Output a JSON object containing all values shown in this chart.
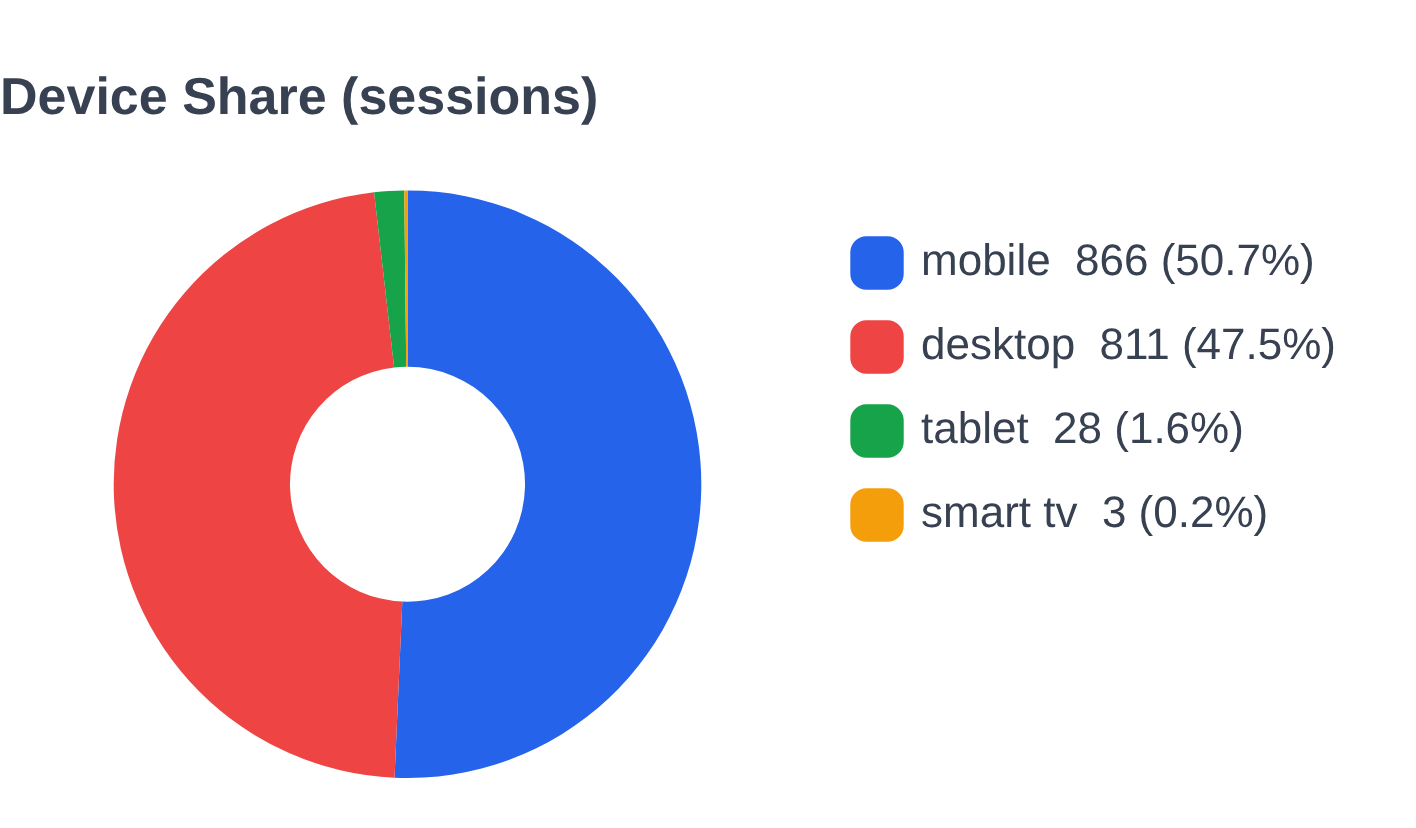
{
  "chart_data": {
    "type": "donut",
    "title": "Device Share (sessions)",
    "categories": [
      "mobile",
      "desktop",
      "tablet",
      "smart tv"
    ],
    "values": [
      866,
      811,
      28,
      3
    ],
    "value_labels": [
      "866 (50.7%)",
      "811 (47.5%)",
      "28 (1.6%)",
      "3 (0.2%)"
    ],
    "colors": [
      "#2563eb",
      "#ef4444",
      "#16a34a",
      "#f59e0b"
    ],
    "legend": "right"
  }
}
